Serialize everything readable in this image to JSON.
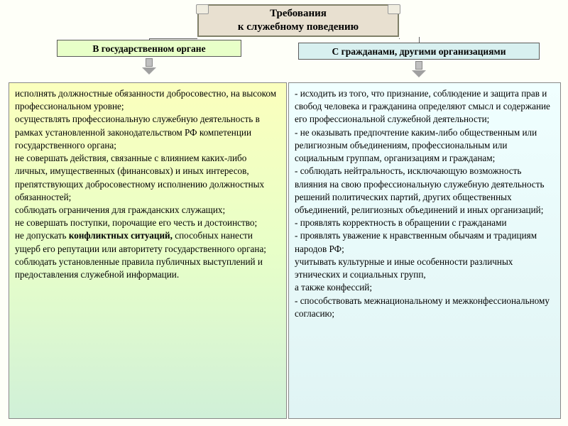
{
  "title": {
    "line1": "Требования",
    "line2": "к служебному поведению"
  },
  "subheaders": {
    "left": "В государственном органе",
    "right": "С гражданами, другими организациями"
  },
  "colors": {
    "title_bg": "#e8e0d0",
    "title_border": "#808068",
    "sub_left_bg": "#e8ffc8",
    "sub_right_bg": "#d8f0f0",
    "left_grad_top": "#fbffbd",
    "left_grad_bot": "#d0f0d8",
    "right_grad_top": "#f0ffff",
    "right_grad_bot": "#e0f4f4",
    "border": "#888888",
    "arrow": "#a0a0a0"
  },
  "left_content": "исполнять должностные обязанности добросовестно, на высоком профессиональном уровне;\nосуществлять профессиональную служебную деятельность в рамках установленной законодательством РФ компетенции государственного органа;\nне совершать действия, связанные с влиянием каких-либо личных, имущественных (финансовых) и иных интересов, препятствующих добросовестному исполнению должностных обязанностей;\nсоблюдать ограничения для гражданских служащих;\nне совершать поступки, порочащие его честь и достоинство;\nне допускать <b>конфликтных ситуаций,</b> способных нанести ущерб его репутации или авторитету государственного органа;\nсоблюдать установленные правила публичных выступлений и предоставления служебной информации.",
  "right_content": "- исходить из того, что признание, соблюдение и защита прав и свобод человека и гражданина определяют смысл и содержание его профессиональной служебной деятельности;\n- не оказывать предпочтение каким-либо общественным или религиозным объединениям, профессиональным или социальным группам, организациям и гражданам;\n- соблюдать нейтральность, исключающую возможность влияния на свою профессиональную служебную деятельность решений политических партий, других общественных объединений, религиозных объединений и иных организаций;\n-   проявлять корректность в обращении с гражданами\n-   проявлять уважение к нравственным обычаям и традициям народов РФ;\nучитывать культурные и иные особенности различных этнических и социальных групп,\nа также конфессий;\n- способствовать межнациональному и межконфессиональному согласию;",
  "fonts": {
    "title_size": 15,
    "sub_size": 13.5,
    "body_size": 13.2
  },
  "type": "flowchart"
}
